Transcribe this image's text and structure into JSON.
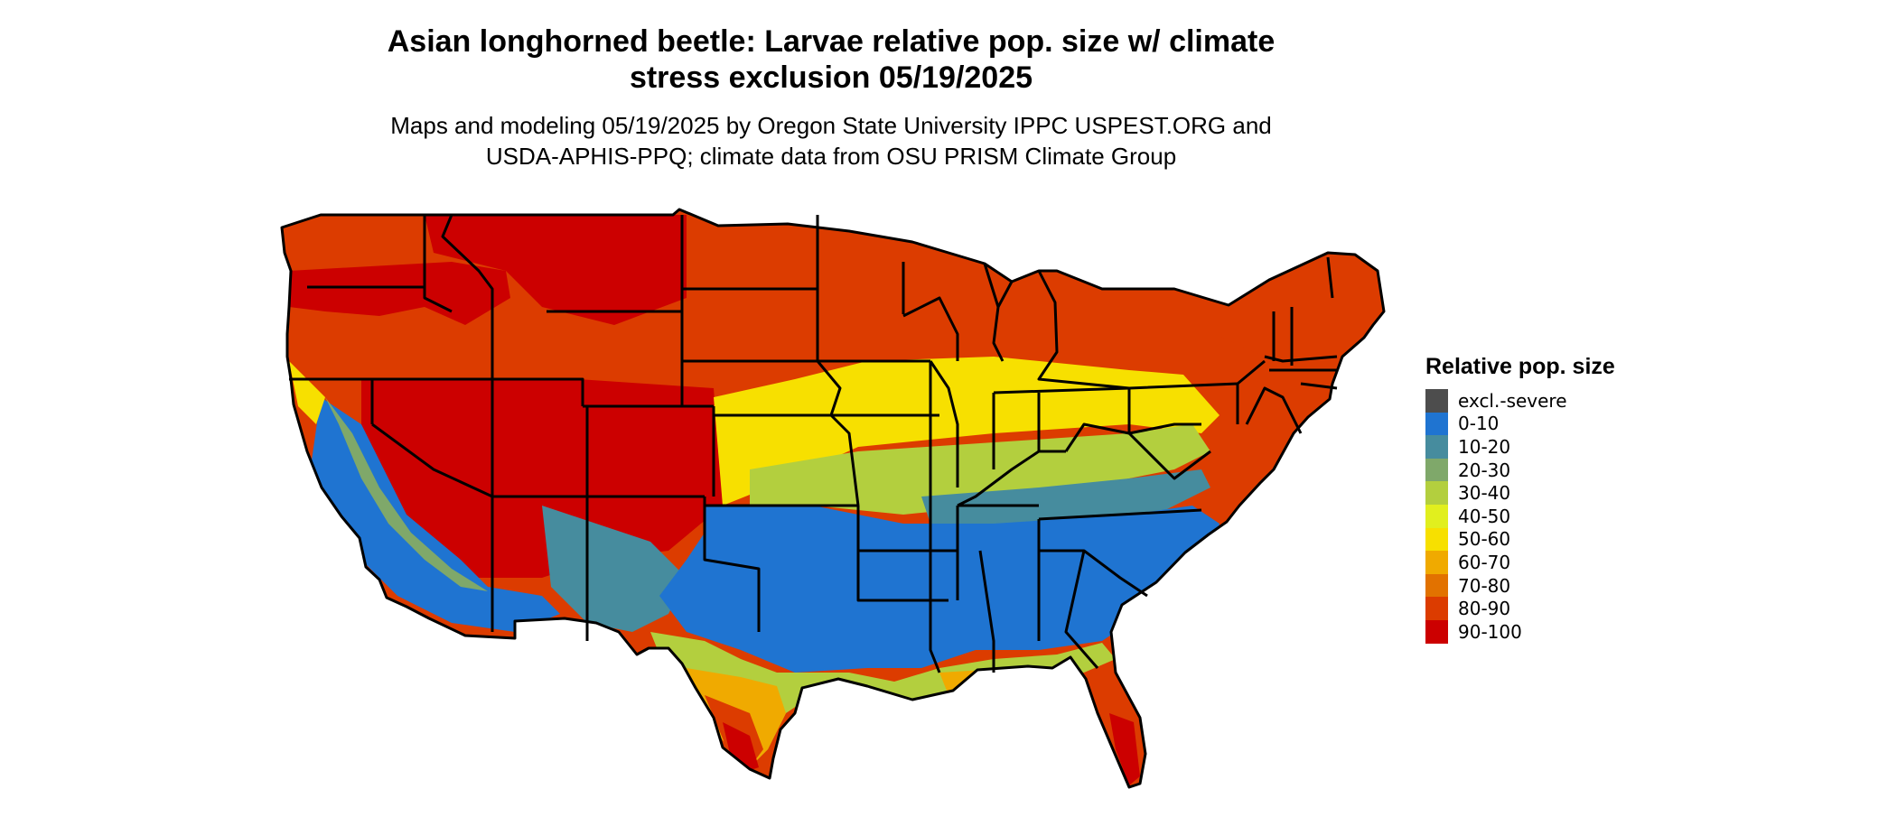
{
  "title_line1": "Asian longhorned beetle: Larvae relative pop. size w/ climate",
  "title_line2": "stress exclusion 05/19/2025",
  "subtitle_line1": "Maps and modeling 05/19/2025 by Oregon State University IPPC USPEST.ORG and",
  "subtitle_line2": "USDA-APHIS-PPQ; climate data from OSU PRISM Climate Group",
  "legend": {
    "title": "Relative pop. size",
    "items": [
      {
        "label": "excl.-severe",
        "color": "#4d4d4d"
      },
      {
        "label": "0-10",
        "color": "#1f74d1"
      },
      {
        "label": "10-20",
        "color": "#468c9e"
      },
      {
        "label": "20-30",
        "color": "#7fa86a"
      },
      {
        "label": "30-40",
        "color": "#b3cf3e"
      },
      {
        "label": "40-50",
        "color": "#e1ef1e"
      },
      {
        "label": "50-60",
        "color": "#f7e000"
      },
      {
        "label": "60-70",
        "color": "#f0aa00"
      },
      {
        "label": "70-80",
        "color": "#e27200"
      },
      {
        "label": "80-90",
        "color": "#dc3c00"
      },
      {
        "label": "90-100",
        "color": "#cc0000"
      }
    ]
  }
}
